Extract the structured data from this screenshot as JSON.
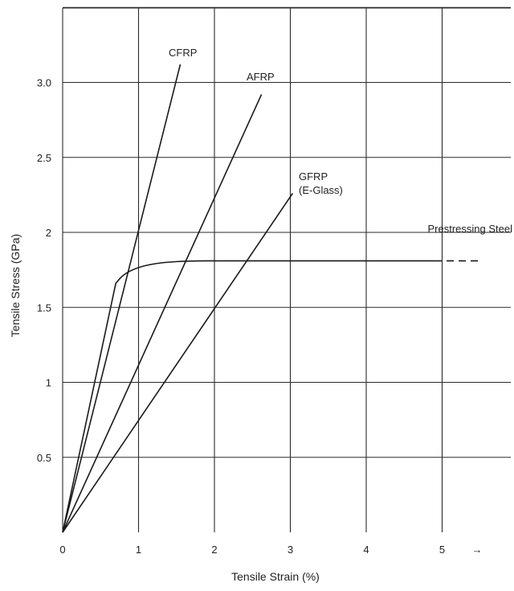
{
  "chart_data": {
    "type": "line",
    "xlabel": "Tensile Strain (%)",
    "ylabel": "Tensile Stress (GPa)",
    "xlim": [
      0,
      5.5
    ],
    "ylim": [
      0,
      3.5
    ],
    "x_ticks": [
      "0",
      "1",
      "2",
      "3",
      "4",
      "5"
    ],
    "y_ticks": [
      "0.5",
      "1",
      "1.5",
      "2",
      "2.5",
      "3.0"
    ],
    "y_tick_values": [
      0.5,
      1,
      1.5,
      2,
      2.5,
      3.0
    ],
    "x_tick_values": [
      0,
      1,
      2,
      3,
      4,
      5
    ],
    "grid": true,
    "axis_arrow": "→",
    "series": [
      {
        "name": "CFRP",
        "x": [
          0,
          1.55
        ],
        "y": [
          0,
          3.12
        ]
      },
      {
        "name": "AFRP",
        "x": [
          0,
          2.62
        ],
        "y": [
          0,
          2.92
        ]
      },
      {
        "name": "GFRP\n(E-Glass)",
        "x": [
          0,
          3.03
        ],
        "y": [
          0,
          2.26
        ]
      },
      {
        "name": "Prestressing Steel",
        "x": [
          0,
          0.7,
          0.8,
          1.0,
          1.3,
          1.7,
          2.2,
          3.0,
          4.0,
          4.9,
          5.5
        ],
        "y": [
          0,
          1.66,
          1.72,
          1.77,
          1.8,
          1.81,
          1.81,
          1.81,
          1.81,
          1.81,
          1.81
        ],
        "dashed_from_x": 4.9
      }
    ]
  }
}
